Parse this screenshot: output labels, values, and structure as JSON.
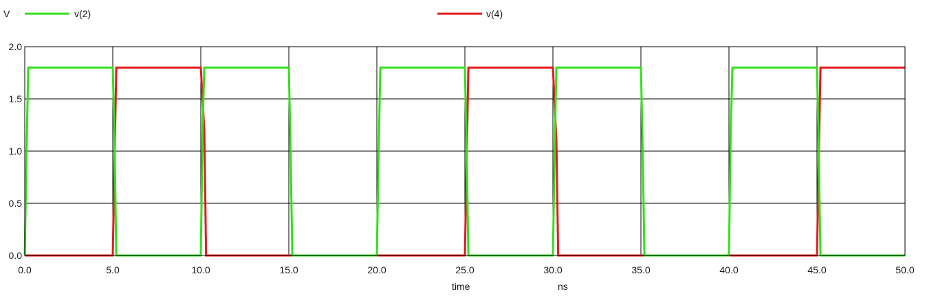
{
  "chart_data": {
    "type": "line",
    "ylabel": "V",
    "xlabel": "time",
    "xunit": "ns",
    "xlim": [
      0,
      50
    ],
    "ylim": [
      0,
      2
    ],
    "xticks": [
      "0.0",
      "5.0",
      "10.0",
      "15.0",
      "20.0",
      "25.0",
      "30.0",
      "35.0",
      "40.0",
      "45.0",
      "50.0"
    ],
    "yticks": [
      "0.0",
      "0.5",
      "1.0",
      "1.5",
      "2.0"
    ],
    "grid": true,
    "legend": "top",
    "series": [
      {
        "name": "v(4)",
        "color": "#e31a1c",
        "x": [
          0,
          5,
          5.2,
          10,
          10.2,
          10.3,
          15,
          25,
          25.2,
          30,
          30.2,
          30.3,
          35,
          45,
          45.2,
          50
        ],
        "y": [
          0,
          0,
          1.8,
          1.8,
          1.2,
          0,
          0,
          0,
          1.8,
          1.8,
          1.1,
          0,
          0,
          0,
          1.8,
          1.8
        ]
      },
      {
        "name": "v(2)",
        "color": "#33e01a",
        "x": [
          0,
          0.1,
          0.2,
          5,
          5.1,
          5.2,
          10,
          10.1,
          10.2,
          15,
          15.1,
          15.2,
          20,
          20.1,
          20.2,
          25,
          25.1,
          25.2,
          30,
          30.1,
          30.2,
          35,
          35.1,
          35.2,
          40,
          40.1,
          40.2,
          45,
          45.1,
          45.2,
          50
        ],
        "y": [
          0,
          1.0,
          1.8,
          1.8,
          1.1,
          0,
          0,
          1.2,
          1.8,
          1.8,
          1.0,
          0,
          0,
          1.0,
          1.8,
          1.8,
          1.0,
          0,
          0,
          1.0,
          1.8,
          1.8,
          1.0,
          0,
          0,
          1.2,
          1.8,
          1.8,
          1.0,
          0,
          0
        ]
      }
    ]
  }
}
